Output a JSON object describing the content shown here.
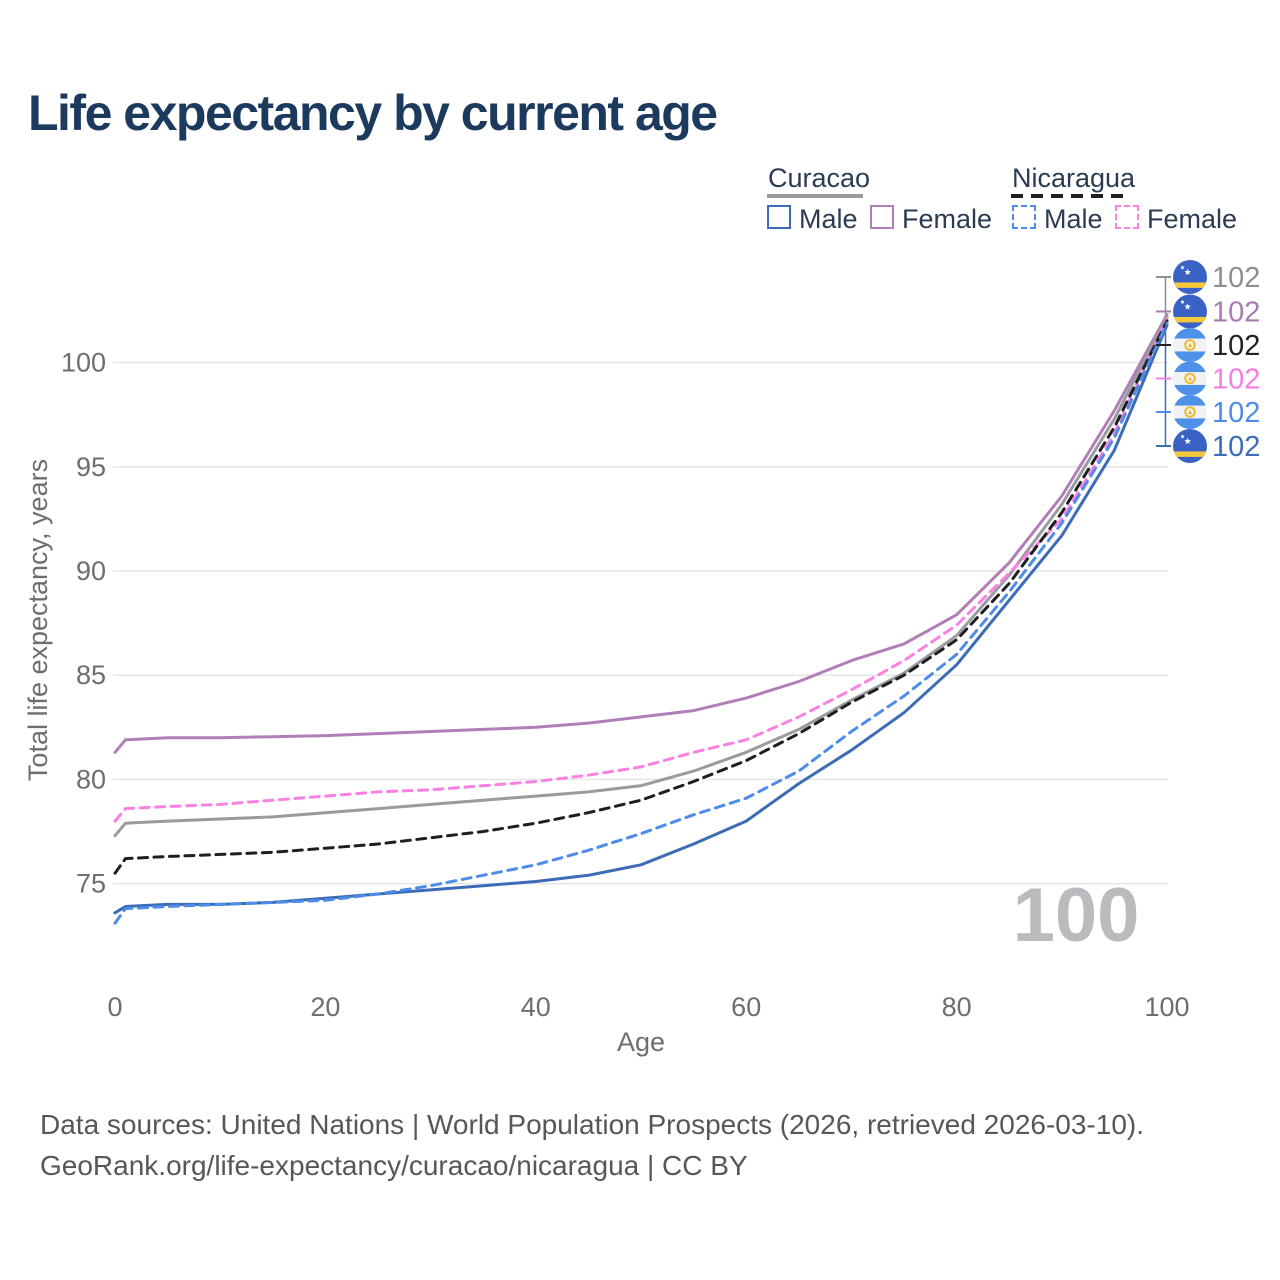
{
  "title": "Life expectancy by current age",
  "legend": {
    "groups": [
      {
        "name": "Curacao",
        "line_style": "solid",
        "items": [
          {
            "label": "Male",
            "color": "#3c6cb6",
            "dash": false
          },
          {
            "label": "Female",
            "color": "#b07fb8",
            "dash": false
          }
        ]
      },
      {
        "name": "Nicaragua",
        "line_style": "dashed",
        "items": [
          {
            "label": "Male",
            "color": "#4d8ce8",
            "dash": true
          },
          {
            "label": "Female",
            "color": "#fb80e3",
            "dash": true
          }
        ]
      }
    ]
  },
  "chart_data": {
    "type": "line",
    "title": "Life expectancy by current age",
    "xlabel": "Age",
    "ylabel": "Total life expectancy, years",
    "x_ticks": [
      0,
      20,
      40,
      60,
      80,
      100
    ],
    "y_ticks": [
      75,
      80,
      85,
      90,
      95,
      100
    ],
    "xlim": [
      0,
      100
    ],
    "ylim": [
      72.5,
      103
    ],
    "grid": "horizontal",
    "legend_position": "top-right",
    "watermark": "100",
    "x": [
      0,
      1,
      5,
      10,
      15,
      20,
      25,
      30,
      35,
      40,
      45,
      50,
      55,
      60,
      65,
      70,
      75,
      80,
      85,
      90,
      95,
      100
    ],
    "series": [
      {
        "name": "Curacao Female",
        "country": "Curacao",
        "sex": "Female",
        "color": "#b07fb8",
        "dash": "solid",
        "values": [
          81.3,
          81.9,
          82.0,
          82.0,
          82.05,
          82.1,
          82.2,
          82.3,
          82.4,
          82.5,
          82.7,
          83.0,
          83.3,
          83.9,
          84.7,
          85.7,
          86.5,
          87.9,
          90.4,
          93.6,
          97.7,
          102.3
        ]
      },
      {
        "name": "Curacao Total",
        "country": "Curacao",
        "sex": "Total",
        "color": "#9a9aa1",
        "dash": "solid",
        "values": [
          77.3,
          77.9,
          78.0,
          78.1,
          78.2,
          78.4,
          78.6,
          78.8,
          79.0,
          79.2,
          79.4,
          79.7,
          80.4,
          81.3,
          82.4,
          83.8,
          85.1,
          86.9,
          89.8,
          93.2,
          97.3,
          102.2
        ]
      },
      {
        "name": "Nicaragua Female",
        "country": "Nicaragua",
        "sex": "Female",
        "color": "#fb80e3",
        "dash": "dashed",
        "values": [
          78.0,
          78.6,
          78.7,
          78.8,
          79.0,
          79.2,
          79.4,
          79.5,
          79.7,
          79.9,
          80.2,
          80.6,
          81.3,
          81.9,
          83.0,
          84.3,
          85.7,
          87.4,
          89.9,
          92.5,
          96.6,
          102.1
        ]
      },
      {
        "name": "Nicaragua Total",
        "country": "Nicaragua",
        "sex": "Total",
        "color": "#1f1f1f",
        "dash": "dashed",
        "values": [
          75.5,
          76.2,
          76.3,
          76.4,
          76.5,
          76.7,
          76.9,
          77.2,
          77.5,
          77.9,
          78.4,
          79.0,
          79.9,
          80.9,
          82.2,
          83.7,
          85.0,
          86.7,
          89.4,
          92.8,
          96.9,
          102.0
        ]
      },
      {
        "name": "Curacao Male",
        "country": "Curacao",
        "sex": "Male",
        "color": "#3c6cb6",
        "dash": "solid",
        "values": [
          73.6,
          73.9,
          74.0,
          74.0,
          74.1,
          74.3,
          74.5,
          74.7,
          74.9,
          75.1,
          75.4,
          75.9,
          76.9,
          78.0,
          79.8,
          81.4,
          83.2,
          85.5,
          88.6,
          91.7,
          95.8,
          101.8
        ]
      },
      {
        "name": "Nicaragua Male",
        "country": "Nicaragua",
        "sex": "Male",
        "color": "#4d8ce8",
        "dash": "dashed",
        "values": [
          73.1,
          73.8,
          73.9,
          74.0,
          74.1,
          74.2,
          74.5,
          74.9,
          75.4,
          75.9,
          76.6,
          77.4,
          78.3,
          79.1,
          80.4,
          82.3,
          84.0,
          86.0,
          89.0,
          92.3,
          96.4,
          101.9
        ]
      }
    ],
    "end_labels": [
      {
        "text": "102",
        "flag": "curacao",
        "color": "#8d8d95",
        "series": "Curacao Total"
      },
      {
        "text": "102",
        "flag": "curacao",
        "color": "#a87cb2",
        "series": "Curacao Female"
      },
      {
        "text": "102",
        "flag": "nicaragua",
        "color": "#222222",
        "series": "Nicaragua Total"
      },
      {
        "text": "102",
        "flag": "nicaragua",
        "color": "#f77ee0",
        "series": "Nicaragua Female"
      },
      {
        "text": "102",
        "flag": "nicaragua",
        "color": "#4d8ce8",
        "series": "Nicaragua Male"
      },
      {
        "text": "102",
        "flag": "curacao",
        "color": "#3c6cb6",
        "series": "Curacao Male"
      }
    ]
  },
  "footer": {
    "line1": "Data sources: United Nations | World Population Prospects (2026, retrieved 2026-03-10).",
    "line2": "GeoRank.org/life-expectancy/curacao/nicaragua | CC BY"
  }
}
